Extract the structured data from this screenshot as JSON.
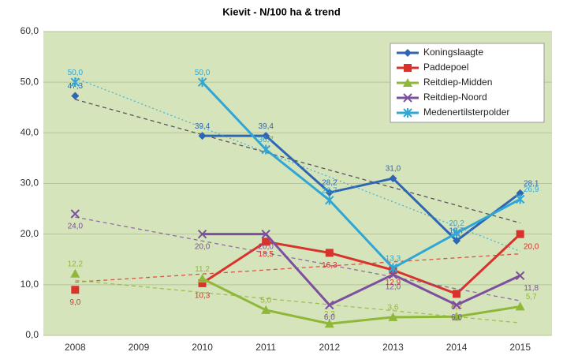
{
  "chart_data": {
    "type": "line",
    "title": "Kievit - N/100 ha & trend",
    "categories": [
      "2008",
      "2009",
      "2010",
      "2011",
      "2012",
      "2013",
      "2014",
      "2015"
    ],
    "ylim": [
      0,
      60
    ],
    "yticks": [
      {
        "value": 0,
        "label": "0,0"
      },
      {
        "value": 10,
        "label": "10,0"
      },
      {
        "value": 20,
        "label": "20,0"
      },
      {
        "value": 30,
        "label": "30,0"
      },
      {
        "value": 40,
        "label": "40,0"
      },
      {
        "value": 50,
        "label": "50,0"
      },
      {
        "value": 60,
        "label": "60,0"
      }
    ],
    "grid": true,
    "legend": "top-right",
    "trend": "linear",
    "series": [
      {
        "name": "Koningslaagte",
        "color": "#2f66b3",
        "marker": "diamond",
        "values": [
          47.3,
          null,
          39.4,
          39.4,
          28.2,
          31.0,
          18.7,
          28.1
        ],
        "value_labels": [
          "47,3",
          null,
          "39,4",
          "39,4",
          "28,2",
          "31,0",
          "18,7",
          "28,1"
        ]
      },
      {
        "name": "Paddepoel",
        "color": "#d8322c",
        "marker": "square",
        "values": [
          9.0,
          null,
          10.3,
          18.5,
          16.3,
          12.9,
          8.2,
          20.0
        ],
        "value_labels": [
          "9,0",
          null,
          "10,3",
          "18,5",
          "16,3",
          "12,9",
          "8,2",
          "20,0"
        ]
      },
      {
        "name": "Reitdiep-Midden",
        "color": "#8fb83a",
        "marker": "triangle",
        "values": [
          12.2,
          null,
          11.2,
          5.0,
          2.3,
          3.6,
          3.7,
          5.7
        ],
        "value_labels": [
          "12,2",
          null,
          "11,2",
          "5,0",
          "2,3",
          "3,6",
          "3,7",
          "5,7"
        ]
      },
      {
        "name": "Reitdiep-Noord",
        "color": "#7d4fa0",
        "marker": "x",
        "values": [
          24.0,
          null,
          20.0,
          20.0,
          6.0,
          12.0,
          6.0,
          11.8
        ],
        "value_labels": [
          "24,0",
          null,
          "20,0",
          "20,0",
          "6,0",
          "12,0",
          "6,0",
          "11,8"
        ]
      },
      {
        "name": "Medenertilsterpolder",
        "color": "#2fa6d6",
        "marker": "star",
        "values": [
          50.0,
          null,
          50.0,
          36.7,
          26.7,
          13.3,
          20.2,
          26.9
        ],
        "value_labels": [
          "50,0",
          null,
          "50,0",
          "36,7",
          "26,7",
          "13,3",
          "20,2",
          "26,9"
        ]
      }
    ]
  }
}
